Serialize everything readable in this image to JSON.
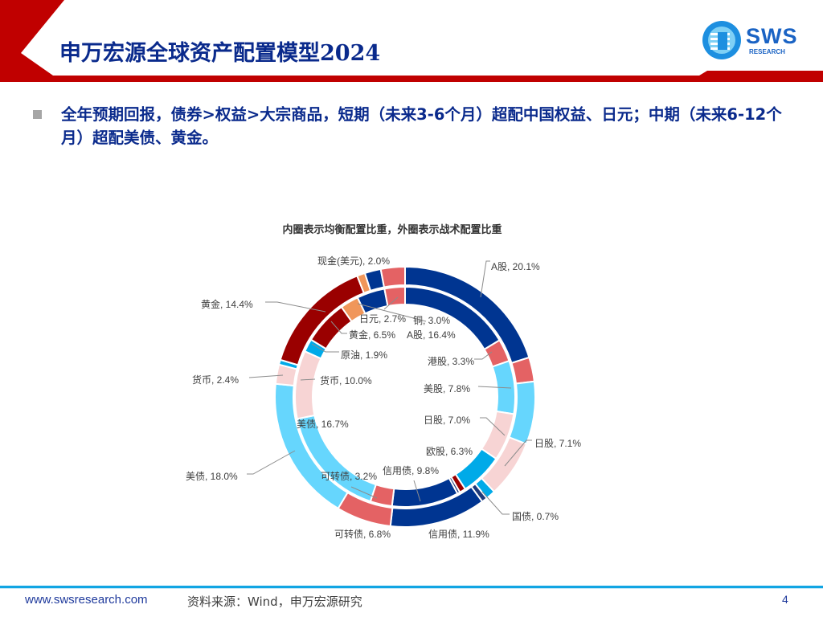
{
  "header": {
    "title": "申万宏源全球资产配置模型2024",
    "logo_text": "SWS",
    "logo_sub": "RESEARCH",
    "accent_color": "#c00000"
  },
  "bullet": "全年预期回报，债券>权益>大宗商品，短期（未来3-6个月）超配中国权益、日元；中期（未来6-12个月）超配美债、黄金。",
  "chart_data": {
    "type": "pie",
    "subtype": "double-donut",
    "title": "内圈表示均衡配置比重，外圈表示战术配置比重",
    "inner": {
      "name": "均衡配置",
      "segments": [
        {
          "label": "A股, 16.4%",
          "value": 16.4,
          "color": "#003591"
        },
        {
          "label": "港股, 3.3%",
          "value": 3.3,
          "color": "#e46264"
        },
        {
          "label": "美股, 7.8%",
          "value": 7.8,
          "color": "#66d6fd"
        },
        {
          "label": "日股, 7.0%",
          "value": 7.0,
          "color": "#f7d4d4"
        },
        {
          "label": "欧股, 6.3%",
          "value": 6.3,
          "color": "#00aae8"
        },
        {
          "value": 0.9,
          "color": "#9a0000"
        },
        {
          "value": 0.4,
          "color": "#1f3a7a"
        },
        {
          "label": "信用债, 9.8%",
          "value": 9.8,
          "color": "#003591"
        },
        {
          "label": "可转债, 3.2%",
          "value": 3.2,
          "color": "#e46264"
        },
        {
          "label": "美债, 16.7%",
          "value": 16.7,
          "color": "#66d6fd"
        },
        {
          "label": "货币, 10.0%",
          "value": 10.0,
          "color": "#f7d4d4"
        },
        {
          "label": "原油, 1.9%",
          "value": 1.9,
          "color": "#00aae8"
        },
        {
          "label": "黄金, 6.5%",
          "value": 6.5,
          "color": "#9a0000"
        },
        {
          "label": "日元, 2.7%",
          "value": 2.7,
          "color": "#f0965a"
        },
        {
          "value": 4.1,
          "color": "#003591"
        },
        {
          "label": "铜, 3.0%",
          "value": 3.0,
          "color": "#e46264"
        }
      ]
    },
    "outer": {
      "name": "战术配置",
      "segments": [
        {
          "label": "A股, 20.1%",
          "value": 20.1,
          "color": "#003591"
        },
        {
          "value": 3.0,
          "color": "#e46264"
        },
        {
          "value": 7.8,
          "color": "#66d6fd"
        },
        {
          "label": "日股, 7.1%",
          "value": 7.1,
          "color": "#f7d4d4"
        },
        {
          "value": 1.2,
          "color": "#00aae8"
        },
        {
          "label": "国债, 0.7%",
          "value": 0.7,
          "color": "#1f3a7a"
        },
        {
          "label": "信用债, 11.9%",
          "value": 11.9,
          "color": "#003591"
        },
        {
          "label": "可转债, 6.8%",
          "value": 6.8,
          "color": "#e46264"
        },
        {
          "label": "美债, 18.0%",
          "value": 18.0,
          "color": "#66d6fd"
        },
        {
          "label": "货币, 2.4%",
          "value": 2.4,
          "color": "#f7d4d4"
        },
        {
          "value": 0.6,
          "color": "#00aae8"
        },
        {
          "label": "黄金, 14.4%",
          "value": 14.4,
          "color": "#9a0000"
        },
        {
          "value": 1.0,
          "color": "#f0965a"
        },
        {
          "label": "现金(美元), 2.0%",
          "value": 2.0,
          "color": "#003591"
        },
        {
          "value": 3.0,
          "color": "#e46264"
        }
      ]
    }
  },
  "footer": {
    "url": "www.swsresearch.com",
    "source": "资料来源：Wind，申万宏源研究",
    "page": "4"
  }
}
